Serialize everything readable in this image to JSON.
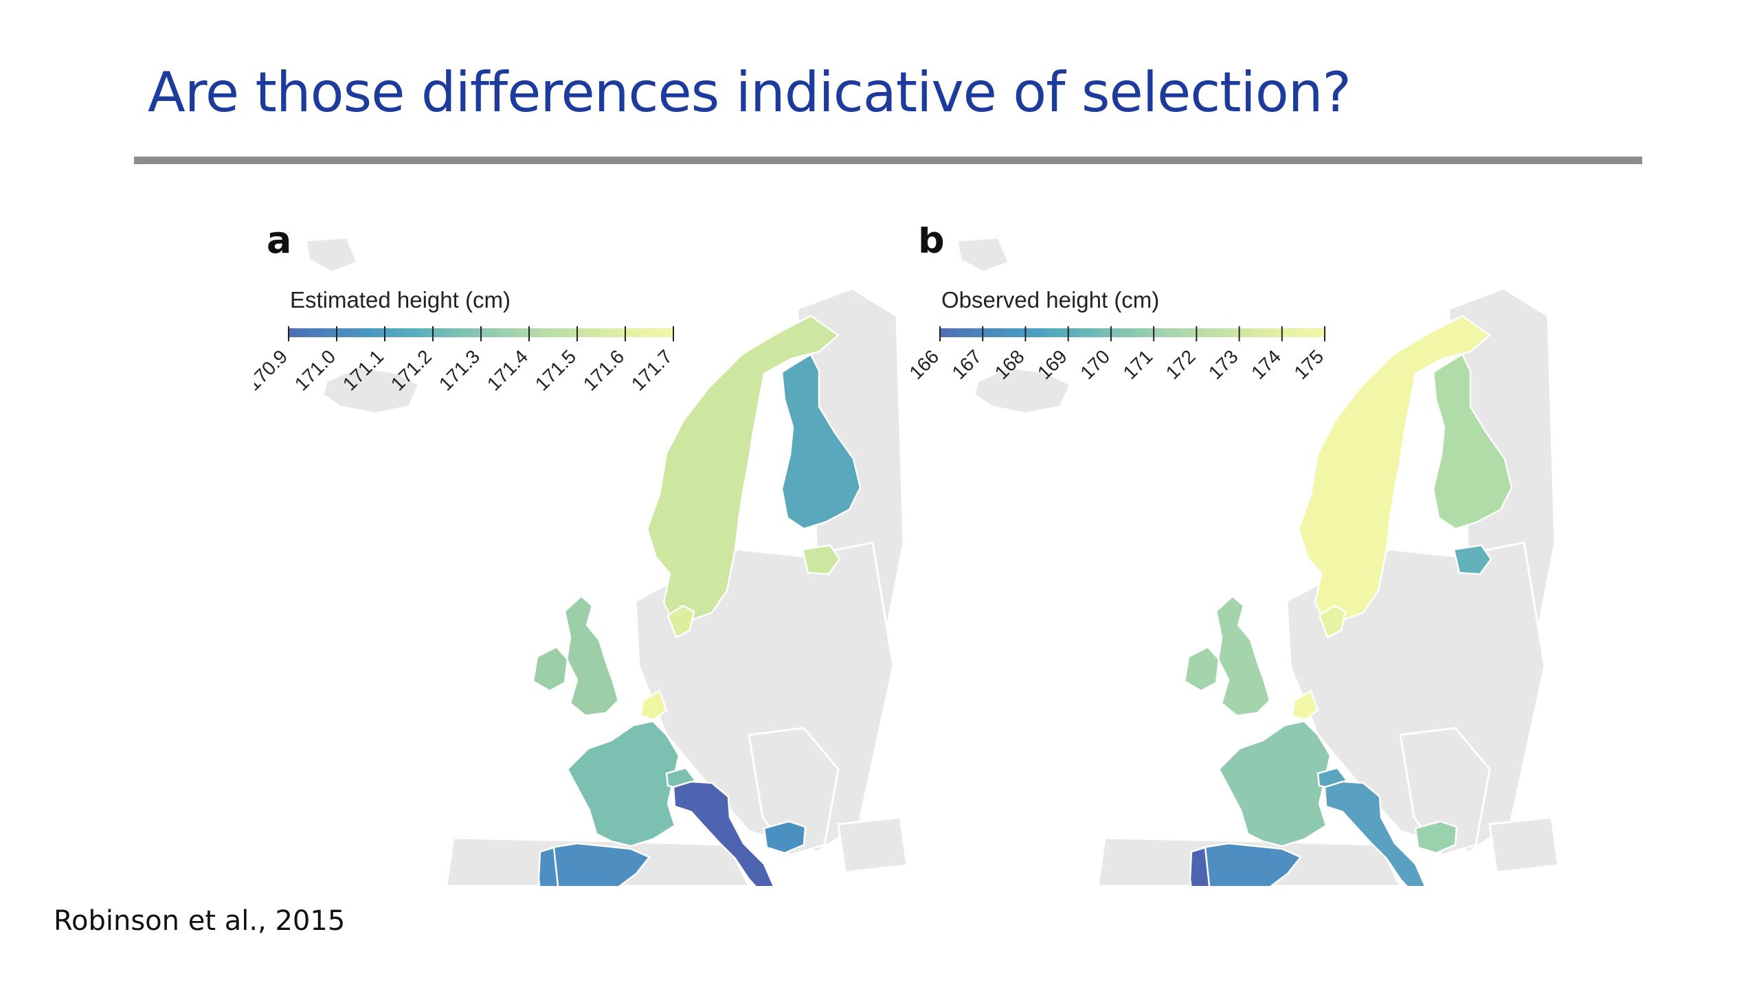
{
  "slide": {
    "title": "Are those differences indicative of selection?",
    "citation": "Robinson et al., 2015"
  },
  "colors": {
    "title": "#1c3b9c",
    "rule": "#8c8c8c",
    "land": "#e7e7e7",
    "scale": [
      "#4e6db4",
      "#4c86bb",
      "#4a9bbf",
      "#5aafbb",
      "#7cc0b4",
      "#9bcfae",
      "#b7dca8",
      "#cfe6a6",
      "#e5f0a5",
      "#f2f7aa"
    ]
  },
  "panels": [
    {
      "letter": "a",
      "legend_title": "Estimated height (cm)",
      "ticks": [
        "170.9",
        "171.0",
        "171.1",
        "171.2",
        "171.3",
        "171.4",
        "171.5",
        "171.6",
        "171.7"
      ],
      "country_fill": {
        "scandinavia": "#cde6a0",
        "finland": "#5aa8bb",
        "estonia": "#cde6a0",
        "britain": "#9ccfa8",
        "ireland": "#9ccfa8",
        "denmark": "#dcef9e",
        "netherlands": "#eef6a2",
        "france": "#7cc0b2",
        "switzerland": "#7cc0b2",
        "spain": "#4e8ec0",
        "portugal": "#4e8ec0",
        "italy": "#4e64b0",
        "bulgaria": "#4a90c0"
      }
    },
    {
      "letter": "b",
      "legend_title": "Observed height (cm)",
      "ticks": [
        "166",
        "167",
        "168",
        "169",
        "170",
        "171",
        "172",
        "173",
        "174",
        "175"
      ],
      "country_fill": {
        "scandinavia": "#f1f7a6",
        "finland": "#b0dca8",
        "estonia": "#62b1bb",
        "britain": "#a3d4ab",
        "ireland": "#a3d4ab",
        "denmark": "#e7f3a4",
        "netherlands": "#f1f7a6",
        "france": "#8fcab0",
        "switzerland": "#5aa6be",
        "spain": "#4e8ec0",
        "portugal": "#4e64b0",
        "italy": "#5aa0c0",
        "bulgaria": "#9ad2ad"
      }
    }
  ]
}
